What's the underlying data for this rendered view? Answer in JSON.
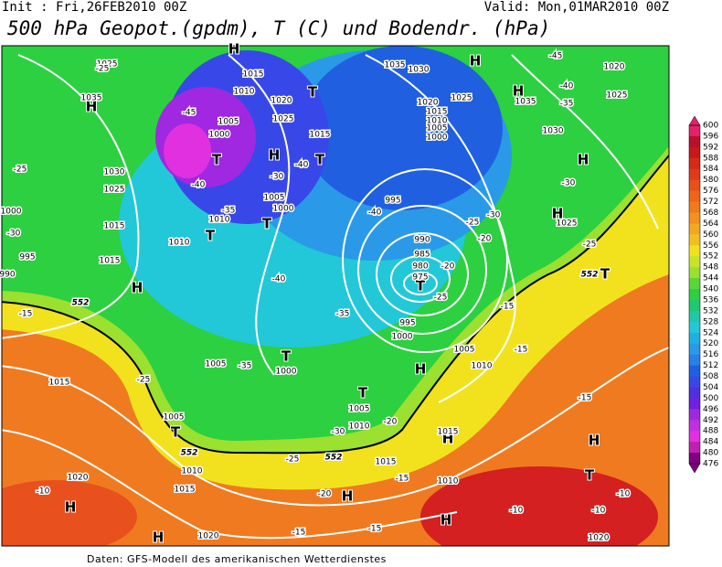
{
  "header": {
    "init": "Init : Fri,26FEB2010 00Z",
    "valid": "Valid: Mon,01MAR2010 00Z",
    "title": "500 hPa Geopot.(gpdm), T (C) und Bodendr. (hPa)"
  },
  "footer": "Daten: GFS-Modell des amerikanischen Wetterdienstes",
  "colorbar": {
    "levels": [
      "600",
      "596",
      "592",
      "588",
      "584",
      "580",
      "576",
      "572",
      "568",
      "564",
      "560",
      "556",
      "552",
      "548",
      "544",
      "540",
      "536",
      "532",
      "528",
      "524",
      "520",
      "516",
      "512",
      "508",
      "504",
      "500",
      "496",
      "492",
      "488",
      "484",
      "480",
      "476"
    ],
    "colors": [
      "#e8206a",
      "#b8102a",
      "#c81818",
      "#d82818",
      "#e03a18",
      "#e85018",
      "#f06418",
      "#f07a1c",
      "#f29020",
      "#f2a820",
      "#f2c01e",
      "#f2e21e",
      "#c8e428",
      "#9ce030",
      "#58d838",
      "#2cd040",
      "#20c870",
      "#20c8a8",
      "#22c8d8",
      "#20b0e0",
      "#2a9ae8",
      "#2880e8",
      "#2060e0",
      "#3848e8",
      "#5030e0",
      "#7020e0",
      "#a028e0",
      "#c030e0",
      "#e030e0",
      "#c020b0",
      "#800080"
    ]
  },
  "map_labels": {
    "pressure_centers": [
      "H",
      "H",
      "T",
      "T",
      "T",
      "T",
      "T",
      "H",
      "T",
      "T",
      "H",
      "T",
      "T",
      "H",
      "H",
      "H",
      "H",
      "H",
      "T",
      "H",
      "T",
      "H",
      "H",
      "H",
      "H",
      "H"
    ],
    "isobars": [
      "1025",
      "1035",
      "1030",
      "1025",
      "1015",
      "1010",
      "1015",
      "995",
      "1000",
      "990",
      "1015",
      "1010",
      "1020",
      "1025",
      "1005",
      "1000",
      "1015",
      "1005",
      "1000",
      "1010",
      "995",
      "990",
      "985",
      "980",
      "975",
      "995",
      "1000",
      "1005",
      "1000",
      "1005",
      "1010",
      "1015",
      "1020",
      "1020",
      "1035",
      "1030",
      "1020",
      "1025",
      "1015",
      "1010",
      "1005",
      "1000",
      "1035",
      "1030",
      "1025",
      "1020",
      "1025",
      "1015",
      "1005",
      "1010",
      "1015",
      "1010",
      "1015",
      "1020",
      "1010",
      "1005"
    ],
    "temperatures": [
      "-25",
      "-45",
      "-40",
      "-35",
      "-30",
      "-40",
      "-25",
      "-30",
      "-40",
      "-35",
      "-25",
      "-40",
      "-25",
      "-20",
      "-20",
      "-25",
      "-30",
      "-25",
      "-15",
      "-15",
      "-15",
      "-20",
      "-25",
      "-15",
      "-20",
      "-15",
      "-15",
      "-10",
      "-10",
      "-10",
      "-10",
      "-45",
      "-40",
      "-35",
      "-30",
      "-15",
      "-35",
      "-30"
    ],
    "contours": [
      "552",
      "552",
      "552",
      "552"
    ]
  }
}
